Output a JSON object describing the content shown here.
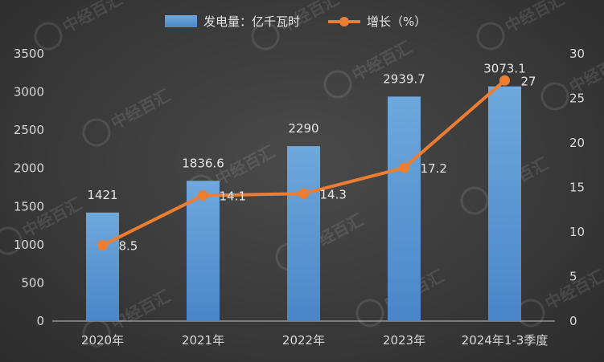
{
  "chart_data": {
    "type": "bar",
    "categories": [
      "2020年",
      "2021年",
      "2022年",
      "2023年",
      "2024年1-3季度"
    ],
    "series": [
      {
        "name": "发电量：亿千瓦时",
        "type": "bar",
        "axis": "left",
        "values": [
          1421,
          1836.6,
          2290,
          2939.7,
          3073.1
        ],
        "color": "#5b9bd5"
      },
      {
        "name": "增长（%）",
        "type": "line",
        "axis": "right",
        "values": [
          8.5,
          14.1,
          14.3,
          17.2,
          27
        ],
        "color": "#ed7d31"
      }
    ],
    "y_left": {
      "min": 0,
      "max": 3500,
      "ticks": [
        0,
        500,
        1000,
        1500,
        2000,
        2500,
        3000,
        3500
      ]
    },
    "y_right": {
      "min": 0,
      "max": 30,
      "ticks": [
        0,
        5,
        10,
        15,
        20,
        25,
        30
      ]
    },
    "legend_position": "top-center",
    "grid": false
  },
  "watermark": {
    "text": "中经百汇"
  }
}
